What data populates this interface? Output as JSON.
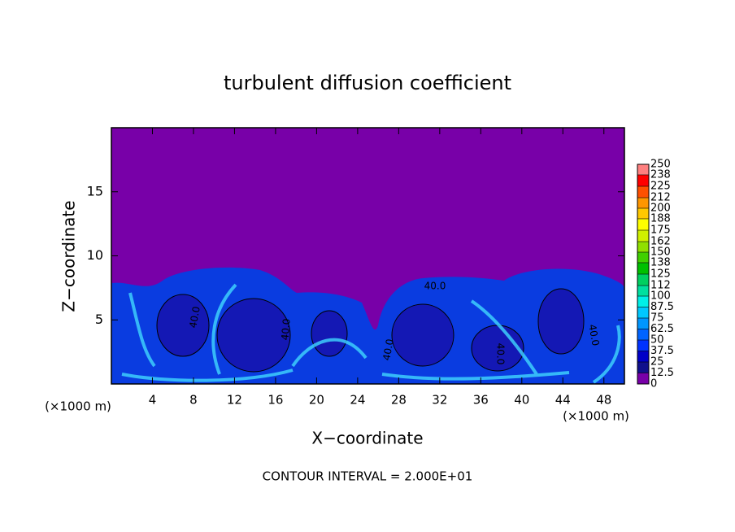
{
  "chart_data": {
    "type": "contour",
    "title": "turbulent diffusion coefficient",
    "xlabel": "X−coordinate",
    "ylabel": "Z−coordinate",
    "xunit_label": "(×1000 m)",
    "yunit_label": "(×1000 m)",
    "xlim": [
      0,
      50
    ],
    "ylim": [
      0,
      20
    ],
    "xticks": [
      4,
      8,
      12,
      16,
      20,
      24,
      28,
      32,
      36,
      40,
      44,
      48
    ],
    "yticks": [
      5,
      10,
      15
    ],
    "annotation": "CONTOUR INTERVAL = 2.000E+01",
    "contour_labels": [
      "40.0",
      "40.0",
      "40.0",
      "40.0",
      "40.0",
      "40.0"
    ],
    "colorbar": {
      "lim": [
        0,
        250
      ],
      "ticks": [
        0,
        12.5,
        25,
        37.5,
        50,
        62.5,
        75,
        87.5,
        100,
        112,
        125,
        138,
        150,
        162,
        175,
        188,
        200,
        212,
        225,
        238,
        250
      ],
      "colors": [
        "#7800a8",
        "#10108c",
        "#0000c8",
        "#0032ff",
        "#0064ff",
        "#0096ff",
        "#00c8ff",
        "#00f0e8",
        "#00e0a0",
        "#00d060",
        "#00c000",
        "#40d000",
        "#90e000",
        "#d0f000",
        "#ffff00",
        "#ffc800",
        "#ff9600",
        "#ff5000",
        "#ff0000",
        "#ff8080"
      ]
    }
  }
}
